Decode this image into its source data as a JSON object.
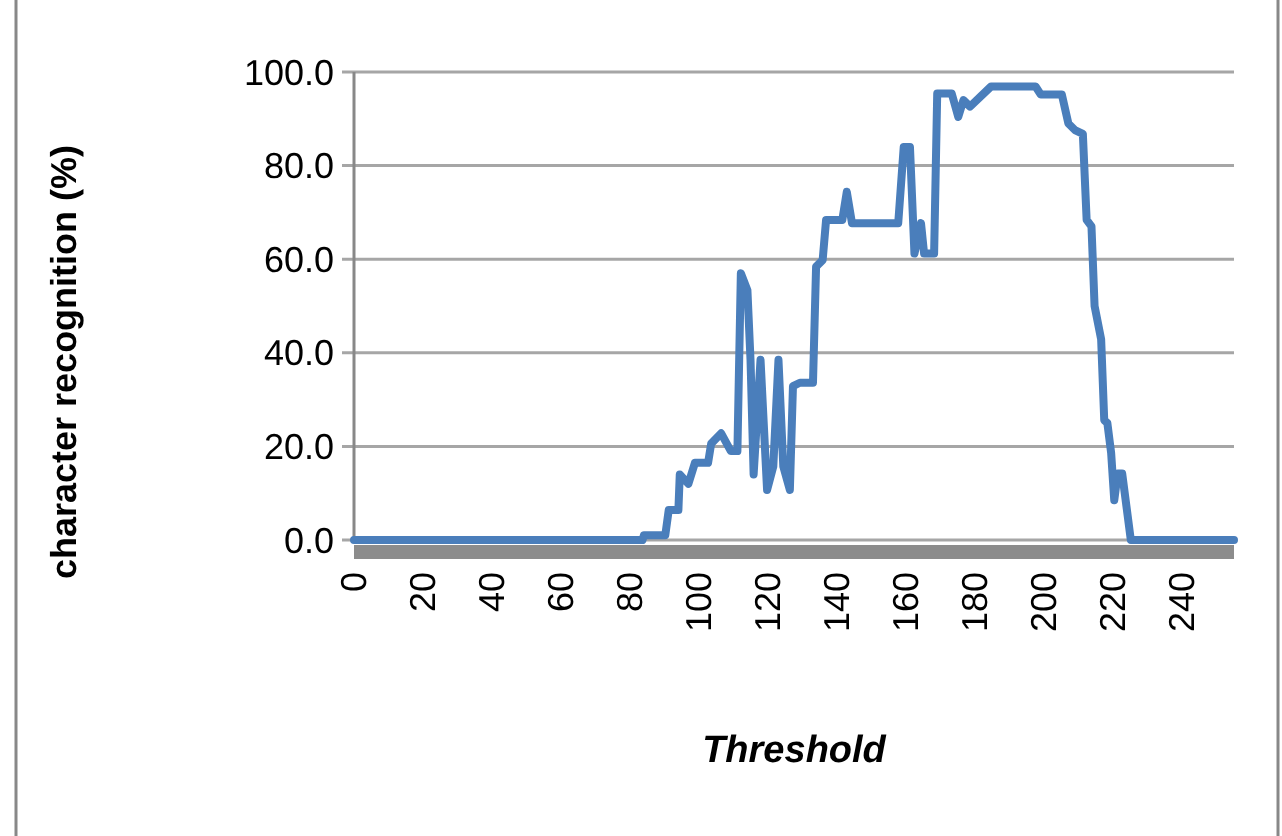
{
  "chart_data": {
    "type": "line",
    "xlabel": "Threshold",
    "ylabel": "character recognition (%)",
    "x": [
      0,
      83.6,
      84,
      90.2,
      91.2,
      94,
      94.4,
      96.9,
      98.8,
      102.6,
      103.5,
      106.4,
      109.2,
      111.1,
      112.1,
      114,
      114.9,
      115.8,
      117.8,
      119.7,
      121.5,
      123,
      124.4,
      126.3,
      127.2,
      129.2,
      133,
      133.9,
      135.8,
      136.8,
      141.5,
      142.8,
      144.3,
      157.7,
      159.3,
      161.1,
      162.4,
      164.3,
      165.2,
      168.1,
      169,
      173.2,
      175.1,
      176.6,
      178.5,
      184.6,
      185.2,
      197.5,
      199,
      205.1,
      207,
      208.9,
      211.2,
      212.3,
      213.7,
      214.6,
      216.5,
      217.4,
      218.3,
      219.4,
      220.3,
      221.3,
      222.6,
      225.1,
      255
    ],
    "series": [
      {
        "color": "#4a7ebb",
        "values": [
          0,
          0,
          1,
          1,
          6.4,
          6.4,
          14,
          12,
          16.5,
          16.5,
          20.6,
          22.8,
          19,
          19,
          57,
          53.4,
          38.5,
          14,
          38.5,
          10.7,
          15.7,
          38.5,
          15.7,
          10.7,
          32.9,
          33.6,
          33.6,
          58.4,
          59.8,
          68.4,
          68.4,
          74.4,
          67.7,
          67.7,
          84,
          84,
          61.2,
          67.7,
          61.2,
          61.2,
          95.4,
          95.4,
          90.4,
          94,
          92.6,
          96.9,
          96.9,
          96.9,
          95.2,
          95.2,
          89,
          87.6,
          86.8,
          68.4,
          67,
          50,
          42.9,
          25.6,
          25,
          18.6,
          8.5,
          14.2,
          14.2,
          0,
          0
        ]
      }
    ],
    "xlim": [
      0,
      255
    ],
    "xticks": [
      0,
      20,
      40,
      60,
      80,
      100,
      120,
      140,
      160,
      180,
      200,
      220,
      240
    ],
    "ylim": [
      0,
      100
    ],
    "yticks": [
      {
        "value": 0,
        "label": "0.0"
      },
      {
        "value": 20,
        "label": "20.0"
      },
      {
        "value": 40,
        "label": "40.0"
      },
      {
        "value": 60,
        "label": "60.0"
      },
      {
        "value": 80,
        "label": "80.0"
      },
      {
        "value": 100,
        "label": "100.0"
      }
    ],
    "grid": "y",
    "marker": "none",
    "line_style": "solid"
  }
}
